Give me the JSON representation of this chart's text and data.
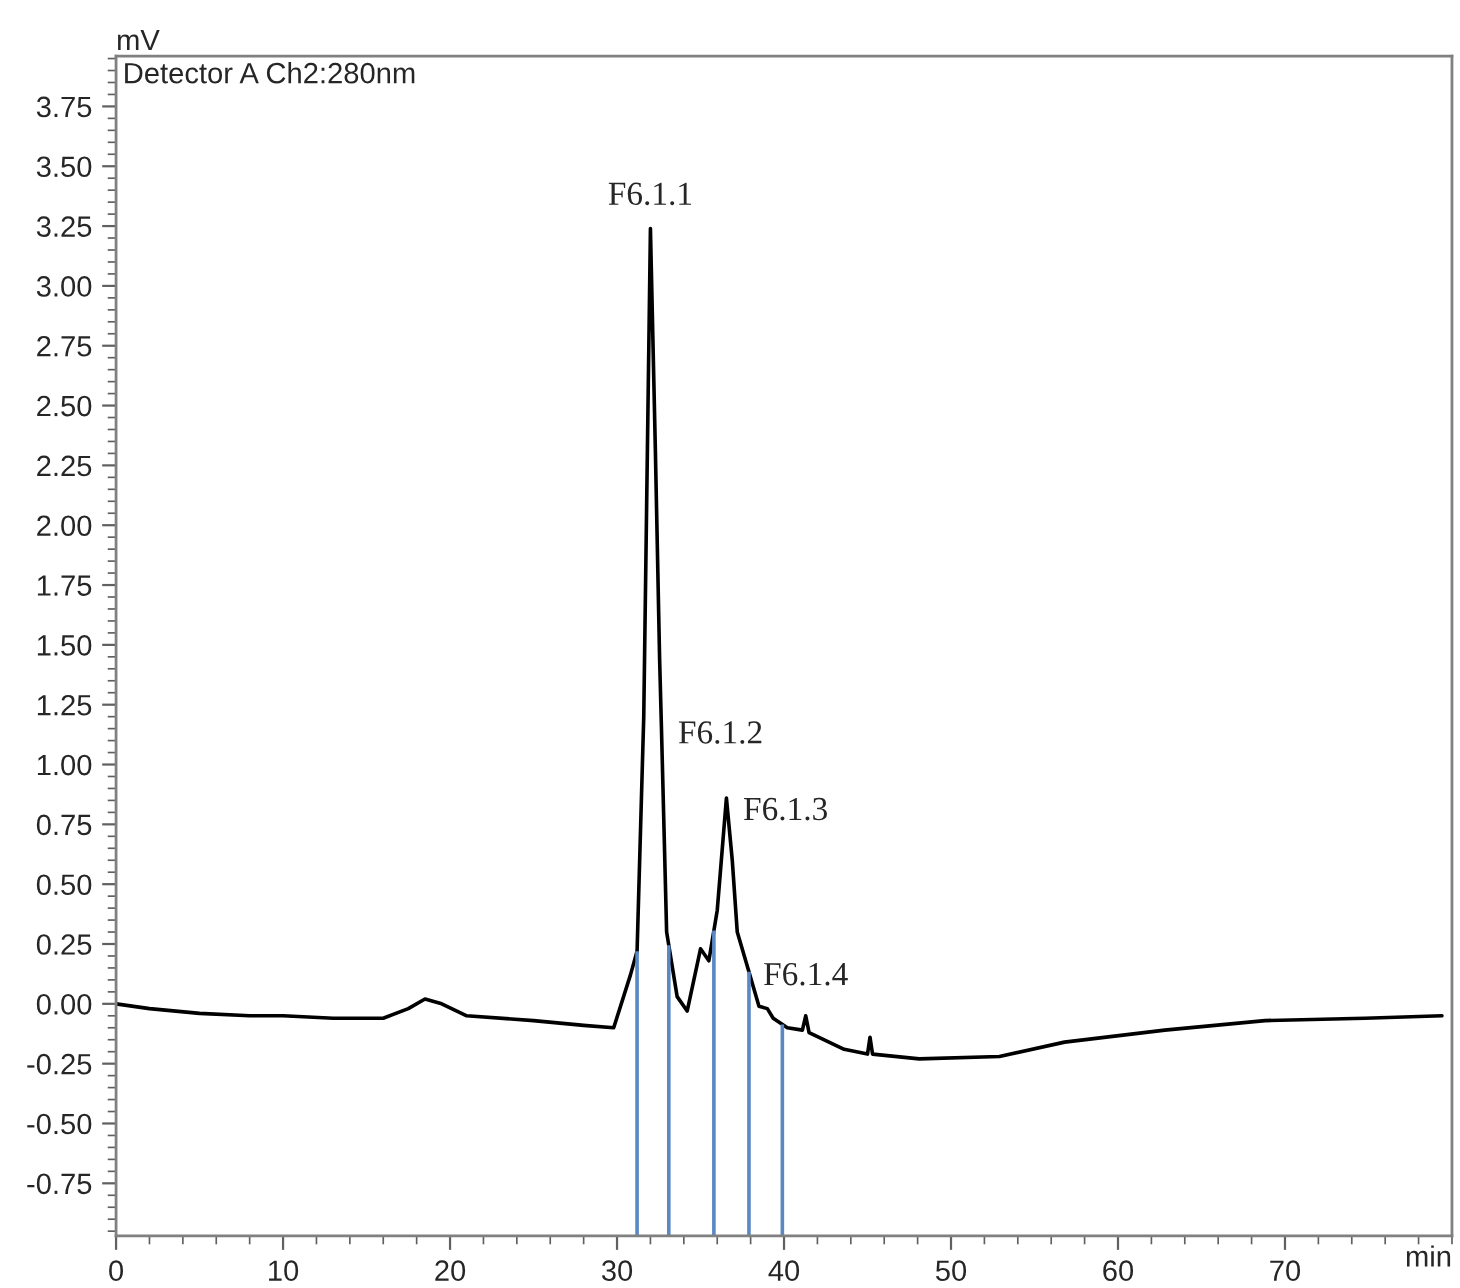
{
  "chart_data": {
    "type": "line",
    "xlabel": "min",
    "ylabel": "mV",
    "x": [
      0,
      2,
      5,
      8,
      10,
      13,
      16,
      17.5,
      18.5,
      19.5,
      21,
      25,
      28,
      29.8,
      30.8,
      31.2,
      31.6,
      32.0,
      32.3,
      32.55,
      32.65,
      32.97,
      33.6,
      34.2,
      35.0,
      35.5,
      36.0,
      36.55,
      36.9,
      37.2,
      37.75,
      38.5,
      39.0,
      39.35,
      40.2,
      41.1,
      41.3,
      41.5,
      43.6,
      45.0,
      45.15,
      45.3,
      48.1,
      52.9,
      56.8,
      62.8,
      68.8,
      74.8,
      79.4
    ],
    "xlim": [
      0,
      80
    ],
    "xticks": [
      0,
      10,
      20,
      30,
      40,
      50,
      60,
      70
    ],
    "ylim": [
      -0.97,
      3.96
    ],
    "yticks": [
      {
        "value": -0.75,
        "label": "-0.75"
      },
      {
        "value": -0.5,
        "label": "-0.50"
      },
      {
        "value": -0.25,
        "label": "-0.25"
      },
      {
        "value": 0,
        "label": "0.00"
      },
      {
        "value": 0.25,
        "label": "0.25"
      },
      {
        "value": 0.5,
        "label": "0.50"
      },
      {
        "value": 0.75,
        "label": "0.75"
      },
      {
        "value": 1,
        "label": "1.00"
      },
      {
        "value": 1.25,
        "label": "1.25"
      },
      {
        "value": 1.5,
        "label": "1.50"
      },
      {
        "value": 1.75,
        "label": "1.75"
      },
      {
        "value": 2,
        "label": "2.00"
      },
      {
        "value": 2.25,
        "label": "2.25"
      },
      {
        "value": 2.5,
        "label": "2.50"
      },
      {
        "value": 2.75,
        "label": "2.75"
      },
      {
        "value": 3,
        "label": "3.00"
      },
      {
        "value": 3.25,
        "label": "3.25"
      },
      {
        "value": 3.5,
        "label": "3.50"
      },
      {
        "value": 3.75,
        "label": "3.75"
      }
    ],
    "series": [
      {
        "color": "#000000",
        "values": [
          0.0,
          -0.02,
          -0.04,
          -0.05,
          -0.05,
          -0.06,
          -0.06,
          -0.02,
          0.02,
          0.0,
          -0.05,
          -0.07,
          -0.09,
          -0.1,
          0.12,
          0.22,
          1.2,
          3.24,
          2.3,
          1.44,
          1.18,
          0.3,
          0.03,
          -0.03,
          0.23,
          0.18,
          0.39,
          0.86,
          0.6,
          0.3,
          0.17,
          -0.01,
          -0.02,
          -0.06,
          -0.1,
          -0.11,
          -0.05,
          -0.12,
          -0.19,
          -0.21,
          -0.14,
          -0.21,
          -0.23,
          -0.22,
          -0.16,
          -0.11,
          -0.07,
          -0.06,
          -0.05
        ]
      }
    ],
    "ref_lines": [
      {
        "axis": "x",
        "value": 31.2,
        "color": "#5b87c5"
      },
      {
        "axis": "x",
        "value": 33.1,
        "color": "#5b87c5"
      },
      {
        "axis": "x",
        "value": 35.8,
        "color": "#5b87c5"
      },
      {
        "axis": "x",
        "value": 37.9,
        "color": "#5b87c5"
      },
      {
        "axis": "x",
        "value": 39.9,
        "color": "#5b87c5"
      }
    ],
    "annotations": [
      "Detector A Ch2:280nm",
      {
        "text": "F6.1.1",
        "x": 32.0,
        "y": 3.24
      },
      {
        "text": "F6.1.2",
        "x": 32.65,
        "y": 1.18
      },
      {
        "text": "F6.1.3",
        "x": 36.55,
        "y": 0.86
      },
      {
        "text": "F6.1.4",
        "x": 37.75,
        "y": 0.17
      }
    ],
    "grid": false,
    "legend": false,
    "marker": "none",
    "line_style": "solid"
  }
}
